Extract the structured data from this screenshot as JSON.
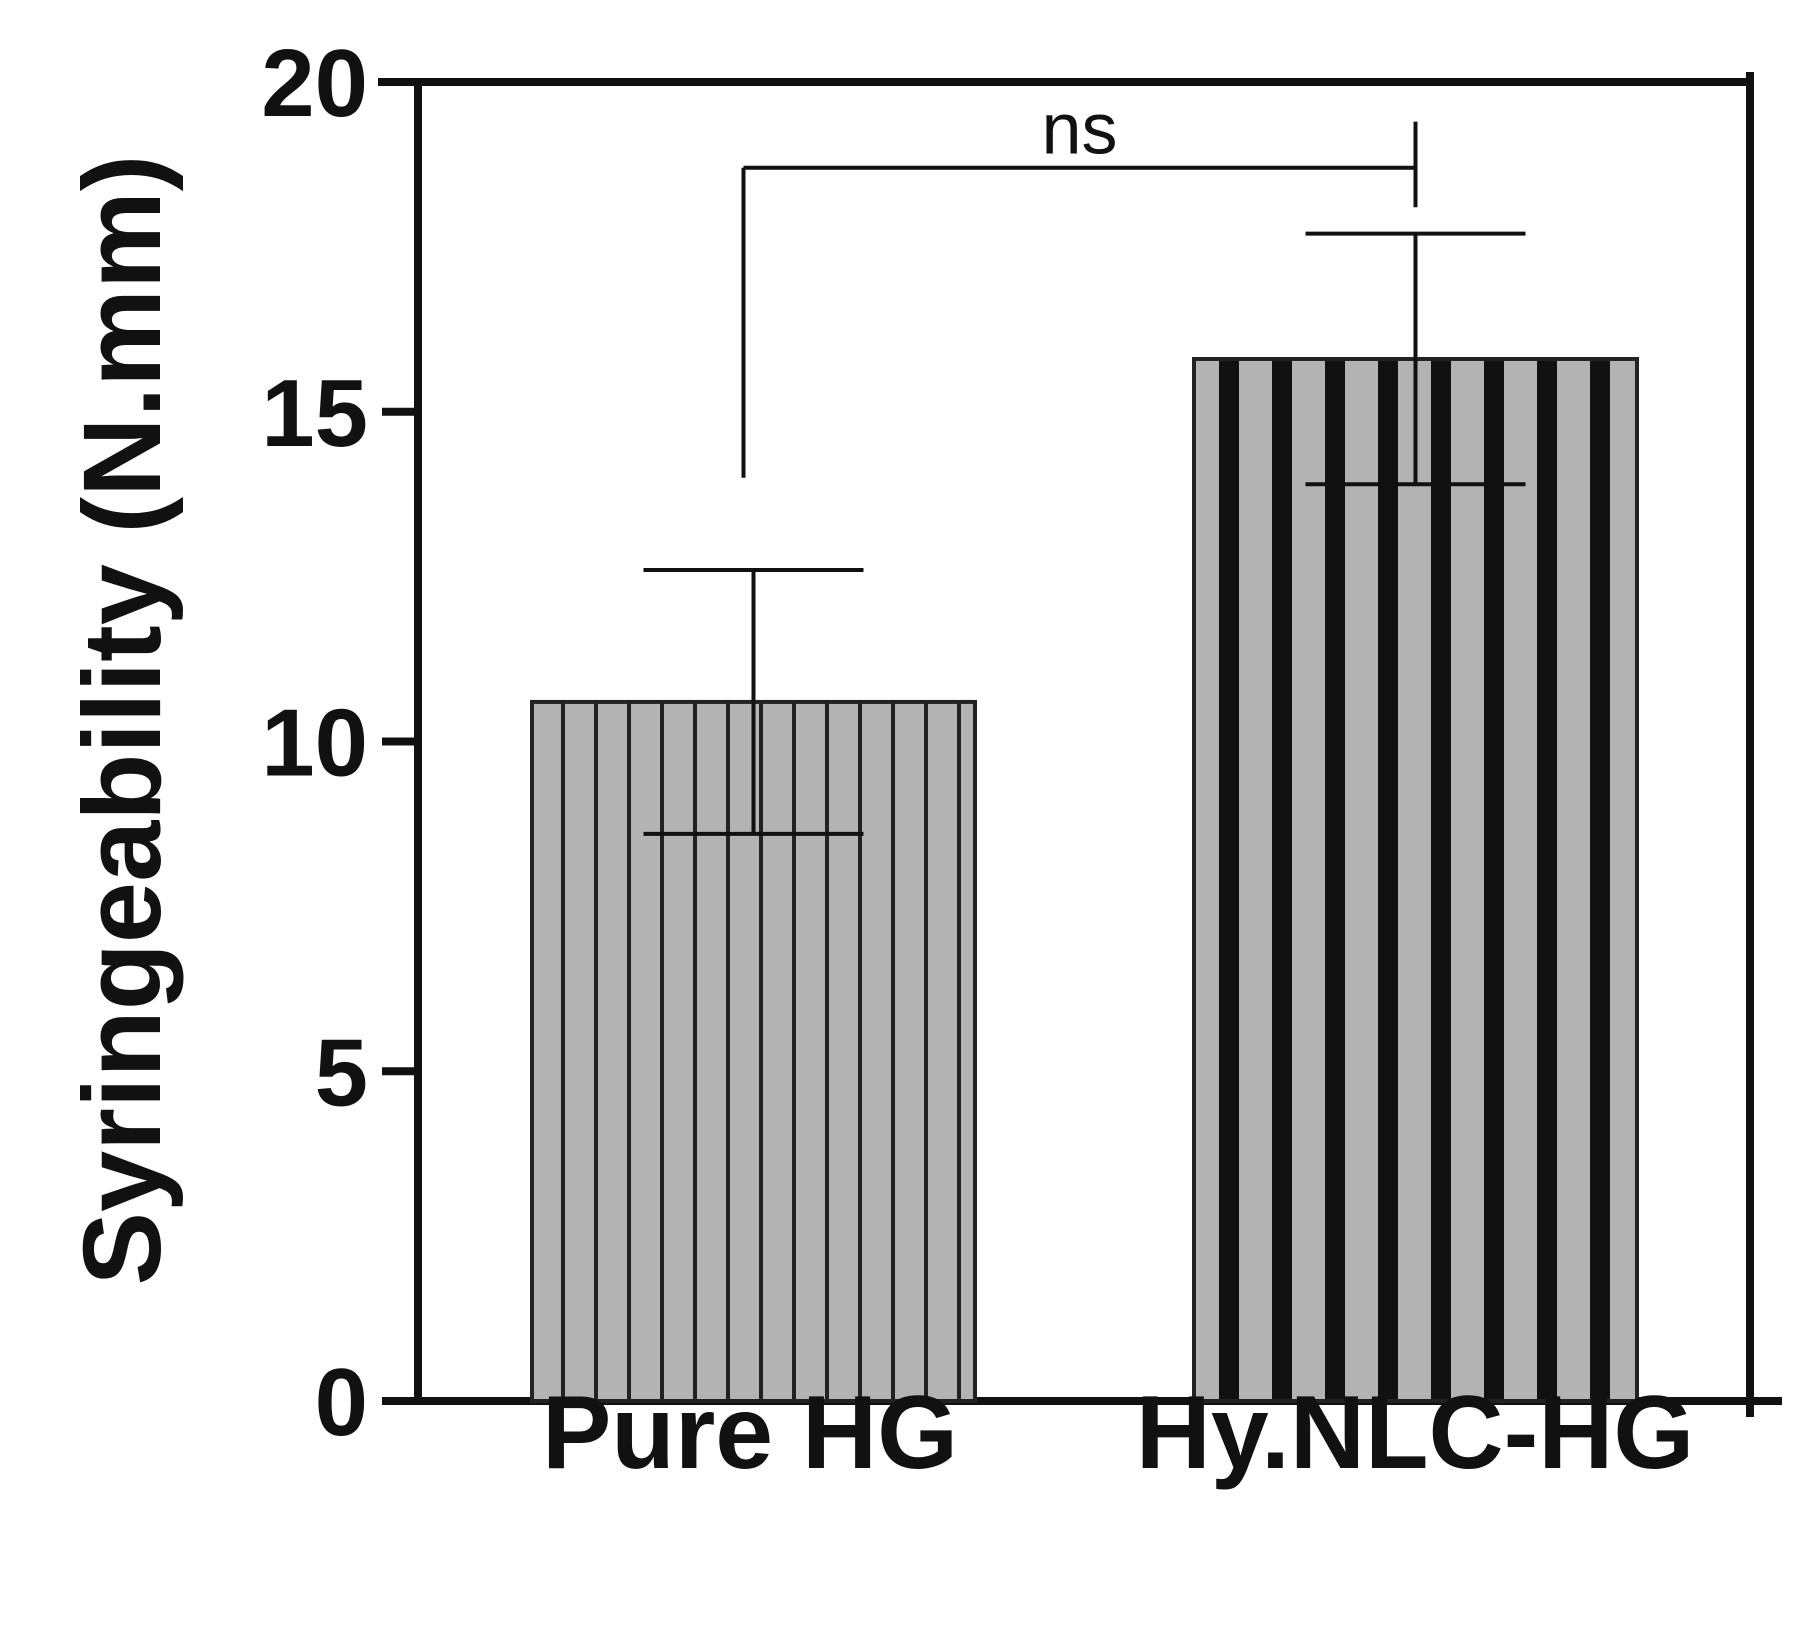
{
  "chart_data": {
    "type": "bar",
    "categories": [
      "Pure HG",
      "Hy.NLC-HG"
    ],
    "values": [
      10.6,
      15.8
    ],
    "errors": [
      2.0,
      1.9
    ],
    "ylabel": "Syringeability (N.mm)",
    "ylim": [
      0,
      20
    ],
    "yticks": [
      0,
      5,
      10,
      15,
      20
    ],
    "ytick_labels": [
      "0",
      "5",
      "10",
      "15",
      "20"
    ],
    "grid": false,
    "bar_fill": "#b3b3b3",
    "bar_stroke": "#222222",
    "significance": {
      "label": "ns",
      "between": [
        0,
        1
      ],
      "y": 18.7
    }
  }
}
